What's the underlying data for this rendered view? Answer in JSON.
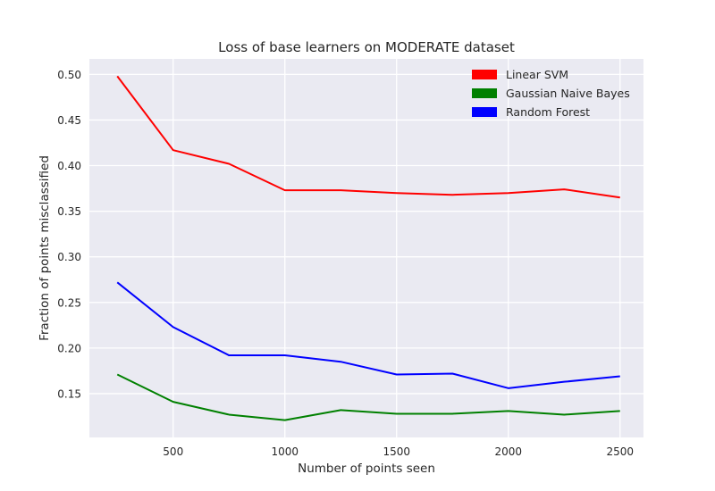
{
  "chart_data": {
    "type": "line",
    "title": "Loss of base learners on MODERATE dataset",
    "xlabel": "Number of points seen",
    "ylabel": "Fraction of points misclassified",
    "x": [
      250,
      500,
      750,
      1000,
      1250,
      1500,
      1750,
      2000,
      2250,
      2500
    ],
    "xticks": [
      500,
      1000,
      1500,
      2000,
      2500
    ],
    "yticks": [
      0.15,
      0.2,
      0.25,
      0.3,
      0.35,
      0.4,
      0.45,
      0.5
    ],
    "xlim": [
      125,
      2605
    ],
    "ylim": [
      0.102,
      0.517
    ],
    "grid": true,
    "legend_position": "top-right",
    "series": [
      {
        "name": "Linear SVM",
        "color": "#ff0000",
        "values": [
          0.498,
          0.417,
          0.402,
          0.373,
          0.373,
          0.37,
          0.368,
          0.37,
          0.374,
          0.365
        ]
      },
      {
        "name": "Gaussian Naive Bayes",
        "color": "#008000",
        "values": [
          0.171,
          0.141,
          0.127,
          0.121,
          0.132,
          0.128,
          0.128,
          0.131,
          0.127,
          0.131
        ]
      },
      {
        "name": "Random Forest",
        "color": "#0000ff",
        "values": [
          0.272,
          0.223,
          0.192,
          0.192,
          0.185,
          0.171,
          0.172,
          0.156,
          0.163,
          0.169
        ]
      }
    ]
  }
}
